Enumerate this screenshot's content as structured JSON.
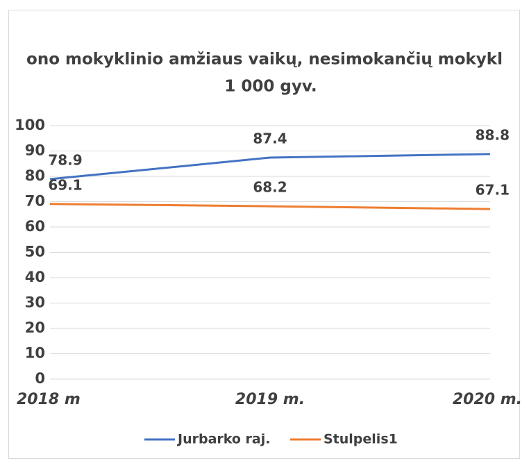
{
  "chart_data": {
    "type": "line",
    "title": [
      "ono mokyklinio amžiaus vaikų, nesimokančių mokykl",
      "1 000 gyv."
    ],
    "categories": [
      "2018 m",
      "2019 m.",
      "2020 m."
    ],
    "series": [
      {
        "name": "Jurbarko raj.",
        "color": "#4472c4",
        "values": [
          78.9,
          87.4,
          88.8
        ]
      },
      {
        "name": "Stulpelis1",
        "color": "#ed7d31",
        "values": [
          69.1,
          68.2,
          67.1
        ]
      }
    ],
    "ylim": [
      0,
      100
    ],
    "yticks": [
      0,
      10,
      20,
      30,
      40,
      50,
      60,
      70,
      80,
      90,
      100
    ],
    "grid": true,
    "legend": "bottom"
  }
}
